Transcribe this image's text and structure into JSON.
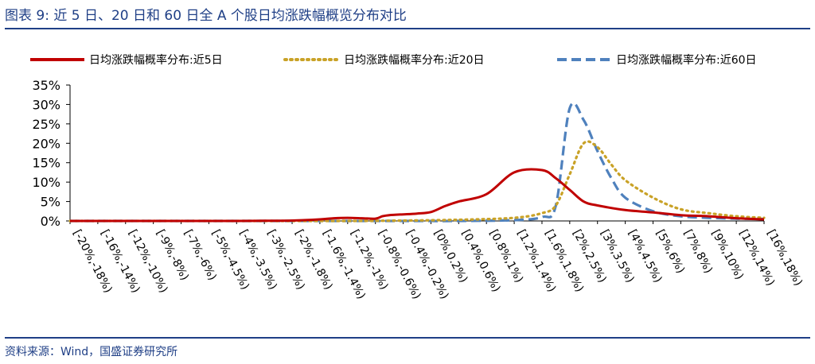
{
  "figure": {
    "title": "图表 9:  近 5 日、20 日和 60 日全 A 个股日均涨跌幅概览分布对比",
    "source": "资料来源：Wind，国盛证券研究所",
    "accent_color": "#1f3f86"
  },
  "chart_data": {
    "type": "line",
    "title": "",
    "xlabel": "",
    "ylabel": "",
    "ylim": [
      0,
      35
    ],
    "y_ticks": [
      "0%",
      "5%",
      "10%",
      "15%",
      "20%",
      "25%",
      "30%",
      "35%"
    ],
    "grid": false,
    "legend_position": "top",
    "categories": [
      "[-20%,-18%)",
      "[-16%,-14%)",
      "[-12%,-10%)",
      "[-9%,-8%)",
      "[-7%,-6%)",
      "[-5%,-4.5%)",
      "[-4%,-3.5%)",
      "[-3%,-2.5%)",
      "[-2%,-1.8%)",
      "[-1.6%,-1.4%)",
      "[-1.2%,-1%)",
      "[-0.8%,-0.6%)",
      "[-0.4%,-0.2%)",
      "[0%,0.2%)",
      "[0.4%,0.6%)",
      "[0.8%,1%)",
      "[1.2%,1.4%)",
      "[1.6%,1.8%)",
      "[2%,2.5%)",
      "[3%,3.5%)",
      "[4%,4.5%)",
      "[5%,6%)",
      "[7%,8%)",
      "[9%,10%)",
      "[12%,14%)",
      "[16%,18%)"
    ],
    "series": [
      {
        "name": "日均涨跌幅概率分布:近5日",
        "color": "#c00000",
        "style": "solid",
        "x": [
          0,
          2,
          4,
          6,
          7,
          8,
          9,
          9.5,
          10,
          10.5,
          11,
          11.25,
          11.5,
          12,
          12.5,
          13,
          13.5,
          14,
          15,
          16,
          17,
          17.5,
          18,
          18.5,
          19,
          20,
          21,
          22,
          23,
          24,
          25
        ],
        "values": [
          0,
          0,
          0,
          0,
          0.05,
          0.1,
          0.4,
          0.7,
          0.8,
          0.7,
          0.6,
          1.2,
          1.5,
          1.7,
          1.9,
          2.3,
          3.8,
          5,
          6.9,
          12.5,
          13.1,
          11,
          8,
          5,
          4,
          2.8,
          2.2,
          1.5,
          1.2,
          0.7,
          0.4
        ]
      },
      {
        "name": "日均涨跌幅概率分布:近20日",
        "color": "#c9a227",
        "style": "dotted",
        "x": [
          0,
          4,
          8,
          10,
          12,
          14,
          16,
          17,
          17.5,
          18,
          18.5,
          19,
          19.5,
          20,
          21,
          22,
          23,
          24,
          25
        ],
        "values": [
          0,
          0,
          0,
          0,
          0.1,
          0.3,
          0.8,
          2,
          4,
          12,
          20,
          19,
          14.5,
          10.5,
          6,
          3,
          2,
          1.2,
          0.8
        ]
      },
      {
        "name": "日均涨跌幅概率分布:近60日",
        "color": "#4f81bd",
        "style": "dashed",
        "x": [
          0,
          4,
          8,
          10,
          12,
          14,
          16,
          17,
          17.5,
          18,
          18.5,
          19,
          19.5,
          20,
          21,
          22,
          23,
          24,
          25
        ],
        "values": [
          0,
          0,
          0,
          0,
          0,
          0,
          0.2,
          1,
          4,
          29,
          26,
          18,
          11,
          6,
          2.5,
          1.2,
          0.8,
          0.6,
          0.5
        ]
      }
    ]
  }
}
